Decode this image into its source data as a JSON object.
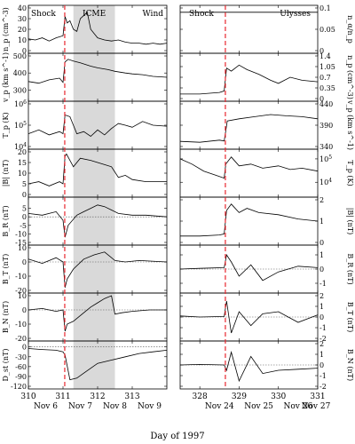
{
  "chart_data": {
    "type": "line",
    "xlabel": "Day of 1997",
    "colors": {
      "trace": "#000000",
      "shock": "#e8262e",
      "icme": "#d9d9d9",
      "guide": "#555555"
    },
    "columns": [
      {
        "id": "left",
        "xlim": [
          310,
          314
        ],
        "xticks": [
          310,
          311,
          312,
          313
        ],
        "date_labels": [
          "Nov 6",
          "Nov 7",
          "Nov 8",
          "Nov 9"
        ],
        "shock_day": 311.05,
        "icme_range": [
          311.3,
          312.5
        ],
        "annotations": [
          "Shock",
          "ICME",
          "Wind"
        ],
        "panels": [
          {
            "ylabel": "n_p (cm^-3)",
            "ylim": [
              0,
              40
            ],
            "yticks": [
              0,
              10,
              20,
              30,
              40
            ],
            "x": [
              310.0,
              310.2,
              310.4,
              310.6,
              310.8,
              311.0,
              311.06,
              311.12,
              311.2,
              311.3,
              311.4,
              311.5,
              311.6,
              311.7,
              311.8,
              312.0,
              312.2,
              312.4,
              312.6,
              312.8,
              313.0,
              313.2,
              313.4,
              313.6,
              313.8,
              314.0
            ],
            "y": [
              11,
              10,
              12,
              9,
              12,
              14,
              32,
              26,
              28,
              20,
              18,
              30,
              33,
              36,
              20,
              12,
              10,
              9,
              10,
              8,
              7,
              7,
              6,
              7,
              6,
              7
            ]
          },
          {
            "ylabel": "v_p (km s^-1)",
            "ylim": [
              250,
              500
            ],
            "yticks": [
              300,
              400,
              500
            ],
            "x": [
              310.0,
              310.3,
              310.6,
              310.9,
              311.0,
              311.06,
              311.15,
              311.3,
              311.5,
              311.8,
              312.0,
              312.3,
              312.5,
              312.8,
              313.0,
              313.3,
              313.6,
              314.0
            ],
            "y": [
              350,
              340,
              360,
              370,
              345,
              465,
              480,
              470,
              460,
              440,
              430,
              420,
              410,
              400,
              395,
              390,
              380,
              375
            ]
          },
          {
            "ylabel": "T_p (K)",
            "scale": "log",
            "ylim": [
              10000,
              1000000
            ],
            "yticks": [
              10000,
              100000,
              1000000
            ],
            "x": [
              310.0,
              310.3,
              310.6,
              310.9,
              311.0,
              311.06,
              311.2,
              311.4,
              311.6,
              311.8,
              312.0,
              312.2,
              312.4,
              312.6,
              312.8,
              313.0,
              313.3,
              313.6,
              314.0
            ],
            "y": [
              40000,
              60000,
              35000,
              50000,
              40000,
              300000,
              250000,
              40000,
              50000,
              30000,
              60000,
              35000,
              70000,
              120000,
              100000,
              80000,
              150000,
              100000,
              90000
            ]
          },
          {
            "ylabel": "|B| (nT)",
            "ylim": [
              0,
              20
            ],
            "yticks": [
              0,
              5,
              10,
              15,
              20
            ],
            "x": [
              310.0,
              310.3,
              310.6,
              310.9,
              311.0,
              311.06,
              311.1,
              311.3,
              311.5,
              311.8,
              312.0,
              312.2,
              312.4,
              312.6,
              312.8,
              313.0,
              313.4,
              314.0
            ],
            "y": [
              5,
              6,
              4,
              6,
              5,
              18,
              19,
              13,
              17,
              16,
              15,
              14,
              13,
              8,
              9,
              7,
              6,
              6
            ]
          },
          {
            "ylabel": "B_R (nT)",
            "ylim": [
              -15,
              10
            ],
            "yticks": [
              -15,
              -10,
              -5,
              0,
              5
            ],
            "x": [
              310.0,
              310.4,
              310.8,
              311.0,
              311.06,
              311.15,
              311.4,
              311.6,
              311.8,
              312.0,
              312.2,
              312.4,
              312.6,
              313.0,
              313.4,
              314.0
            ],
            "y": [
              2,
              1,
              3,
              -2,
              -12,
              -5,
              1,
              3,
              5,
              7,
              6,
              4,
              2,
              1,
              1,
              0
            ]
          },
          {
            "ylabel": "B_T (nT)",
            "ylim": [
              -20,
              10
            ],
            "yticks": [
              -20,
              -10,
              0,
              10
            ],
            "x": [
              310.0,
              310.4,
              310.8,
              311.0,
              311.06,
              311.12,
              311.3,
              311.6,
              311.9,
              312.2,
              312.5,
              312.8,
              313.2,
              314.0
            ],
            "y": [
              2,
              -1,
              3,
              0,
              -18,
              -12,
              -5,
              2,
              5,
              7,
              1,
              0,
              1,
              0
            ]
          },
          {
            "ylabel": "B_N (nT)",
            "ylim": [
              -20,
              10
            ],
            "yticks": [
              -20,
              -10,
              0,
              10
            ],
            "x": [
              310.0,
              310.4,
              310.8,
              311.0,
              311.06,
              311.12,
              311.3,
              311.6,
              311.8,
              312.0,
              312.2,
              312.4,
              312.5,
              312.7,
              313.0,
              313.5,
              314.0
            ],
            "y": [
              0,
              1,
              -1,
              0,
              -15,
              -10,
              -8,
              -2,
              2,
              5,
              8,
              10,
              -3,
              -2,
              -1,
              0,
              0
            ]
          },
          {
            "ylabel": "D_st (nT)",
            "ylim": [
              -120,
              10
            ],
            "yticks": [
              -120,
              -90,
              -60,
              -30,
              0
            ],
            "x": [
              310.0,
              310.4,
              310.8,
              311.0,
              311.06,
              311.2,
              311.4,
              311.6,
              311.8,
              312.0,
              312.4,
              312.8,
              313.2,
              313.6,
              314.0
            ],
            "y": [
              -5,
              -8,
              -10,
              -15,
              -25,
              -100,
              -95,
              -80,
              -65,
              -50,
              -40,
              -30,
              -20,
              -15,
              -10
            ]
          }
        ]
      },
      {
        "id": "right",
        "xlim": [
          327.5,
          331
        ],
        "xticks": [
          328,
          329,
          330,
          331
        ],
        "date_labels": [
          "Nov 24",
          "Nov 25",
          "Nov 26",
          "Nov 27"
        ],
        "shock_day": 328.65,
        "annotations": [
          "Shock",
          "Ulysses"
        ],
        "panels": [
          {
            "ylabel": "n_α/n_p",
            "ylim": [
              0,
              0.1
            ],
            "yticks": [
              0,
              0.05,
              0.1
            ],
            "x": [
              327.5,
              331.0
            ],
            "y": [
              0.09,
              0.09
            ]
          },
          {
            "ylabel": "n_p (cm^-3)",
            "ylim": [
              0,
              1.4
            ],
            "yticks": [
              0,
              0.35,
              0.7,
              1.05,
              1.4
            ],
            "x": [
              327.5,
              328.0,
              328.5,
              328.62,
              328.68,
              328.8,
              329.0,
              329.2,
              329.5,
              329.8,
              330.0,
              330.3,
              330.6,
              331.0
            ],
            "y": [
              0.15,
              0.15,
              0.2,
              0.25,
              1.0,
              0.9,
              1.1,
              0.95,
              0.8,
              0.6,
              0.5,
              0.7,
              0.6,
              0.55
            ]
          },
          {
            "ylabel": "v_p (km s^-1)",
            "ylim": [
              340,
              440
            ],
            "yticks": [
              340,
              390,
              440
            ],
            "x": [
              327.5,
              328.0,
              328.5,
              328.62,
              328.7,
              329.0,
              329.4,
              329.8,
              330.2,
              330.6,
              331.0
            ],
            "y": [
              352,
              350,
              355,
              353,
              400,
              405,
              410,
              415,
              412,
              410,
              405
            ]
          },
          {
            "ylabel": "T_p (K)",
            "scale": "log",
            "ylim": [
              3000,
              200000
            ],
            "yticks": [
              10000,
              100000
            ],
            "x": [
              327.5,
              327.8,
              328.1,
              328.4,
              328.62,
              328.66,
              328.8,
              329.0,
              329.3,
              329.6,
              330.0,
              330.3,
              330.6,
              331.0
            ],
            "y": [
              100000,
              60000,
              30000,
              20000,
              15000,
              60000,
              120000,
              50000,
              60000,
              40000,
              50000,
              35000,
              40000,
              30000
            ]
          },
          {
            "ylabel": "|B| (nT)",
            "ylim": [
              0,
              2
            ],
            "yticks": [
              0,
              1,
              2
            ],
            "x": [
              327.5,
              328.0,
              328.5,
              328.62,
              328.68,
              328.8,
              329.0,
              329.2,
              329.5,
              330.0,
              330.5,
              331.0
            ],
            "y": [
              0.3,
              0.3,
              0.35,
              0.4,
              1.5,
              1.8,
              1.4,
              1.6,
              1.4,
              1.3,
              1.1,
              1.0
            ]
          },
          {
            "ylabel": "B_R (nT)",
            "ylim": [
              -1.5,
              1.5
            ],
            "yticks": [
              -1,
              0,
              1
            ],
            "x": [
              327.5,
              328.0,
              328.62,
              328.68,
              328.8,
              329.0,
              329.3,
              329.6,
              330.0,
              330.5,
              331.0
            ],
            "y": [
              0.0,
              0.05,
              0.1,
              1.0,
              0.5,
              -0.5,
              0.3,
              -0.8,
              -0.2,
              0.2,
              0.1
            ]
          },
          {
            "ylabel": "B_T (nT)",
            "ylim": [
              -2,
              2
            ],
            "yticks": [
              -2,
              -1,
              0,
              1,
              2
            ],
            "x": [
              327.5,
              328.0,
              328.62,
              328.68,
              328.8,
              329.0,
              329.3,
              329.6,
              330.0,
              330.5,
              331.0
            ],
            "y": [
              0.1,
              0.0,
              0.05,
              1.5,
              -1.5,
              0.5,
              -0.8,
              0.3,
              0.5,
              -0.5,
              0.2
            ]
          },
          {
            "ylabel": "B_N (nT)",
            "ylim": [
              -2,
              2
            ],
            "yticks": [
              -2,
              -1,
              0,
              1,
              2
            ],
            "x": [
              327.5,
              328.0,
              328.62,
              328.68,
              328.8,
              329.0,
              329.3,
              329.6,
              330.0,
              330.5,
              331.0
            ],
            "y": [
              0.0,
              0.05,
              0.0,
              -0.5,
              1.2,
              -1.5,
              0.8,
              -0.8,
              -0.5,
              -0.4,
              -0.3
            ]
          }
        ]
      }
    ]
  }
}
